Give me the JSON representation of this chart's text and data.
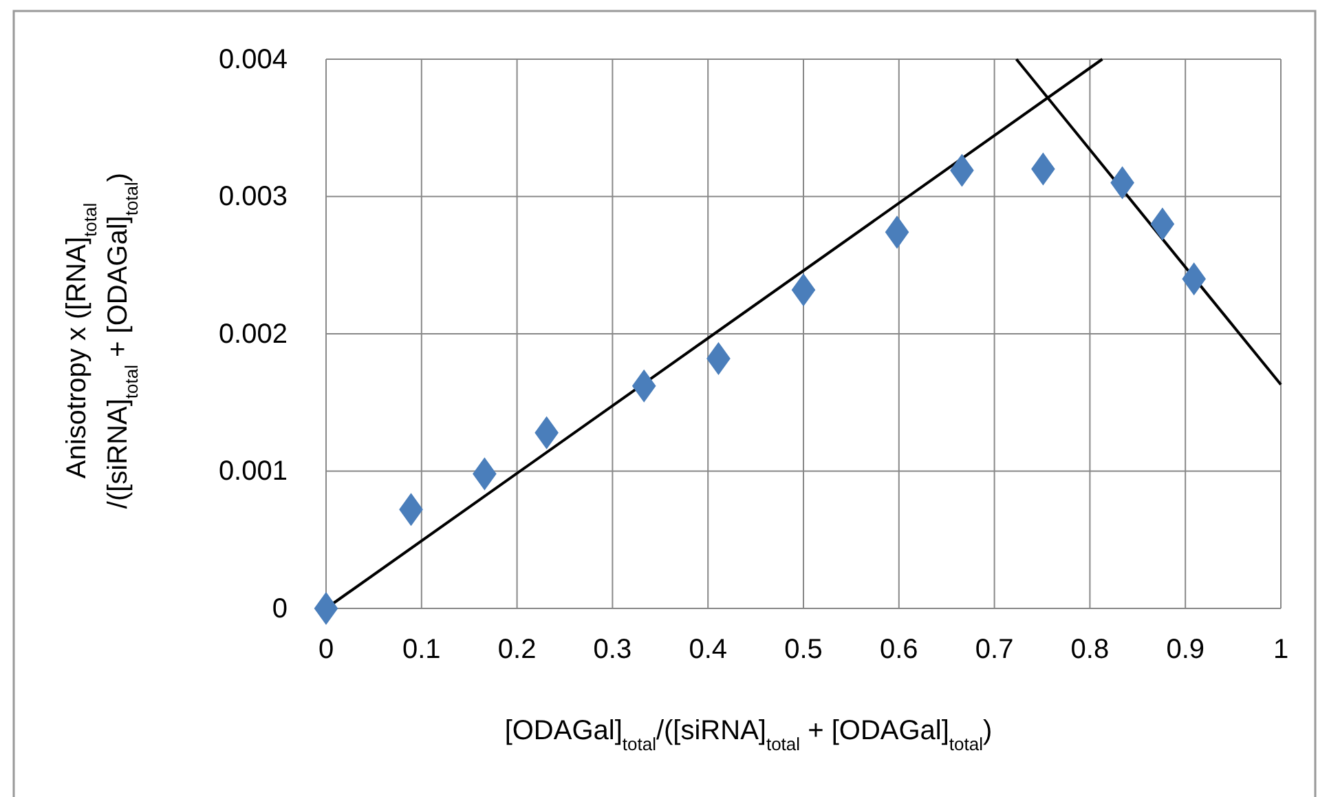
{
  "chart_data": {
    "type": "scatter",
    "xlabel": "[ODAGal]$_{total}$/([siRNA]$_{total}$ + [ODAGal]$_{total}$)",
    "ylabel": "Anisotropy  x ([RNA]$_{total}$\n/([siRNA]$_{total}$ + [ODAGal]$_{total}$)",
    "xlim": [
      0,
      1
    ],
    "xticks": [
      0,
      0.1,
      0.2,
      0.3,
      0.4,
      0.5,
      0.6,
      0.7,
      0.8,
      0.9,
      1
    ],
    "ylim": [
      0,
      0.004
    ],
    "yticks": [
      0,
      0.001,
      0.002,
      0.003,
      0.004
    ],
    "grid": true,
    "marker": "diamond",
    "series": [
      {
        "type": "scatter",
        "color": "#4a7ebb",
        "x": [
          0,
          0.089,
          0.166,
          0.231,
          0.333,
          0.411,
          0.5,
          0.598,
          0.666,
          0.751,
          0.834,
          0.876,
          0.909
        ],
        "values": [
          0,
          0.00072,
          0.00098,
          0.00128,
          0.00162,
          0.00182,
          0.00232,
          0.00274,
          0.00319,
          0.0032,
          0.0031,
          0.0028,
          0.0024
        ]
      },
      {
        "type": "line",
        "color": "#000000",
        "marker": "none",
        "x": [
          0,
          0.813
        ],
        "values": [
          0,
          0.004
        ]
      },
      {
        "type": "line",
        "color": "#000000",
        "marker": "none",
        "x": [
          0.723,
          1
        ],
        "values": [
          0.004,
          0.00163
        ]
      }
    ]
  }
}
